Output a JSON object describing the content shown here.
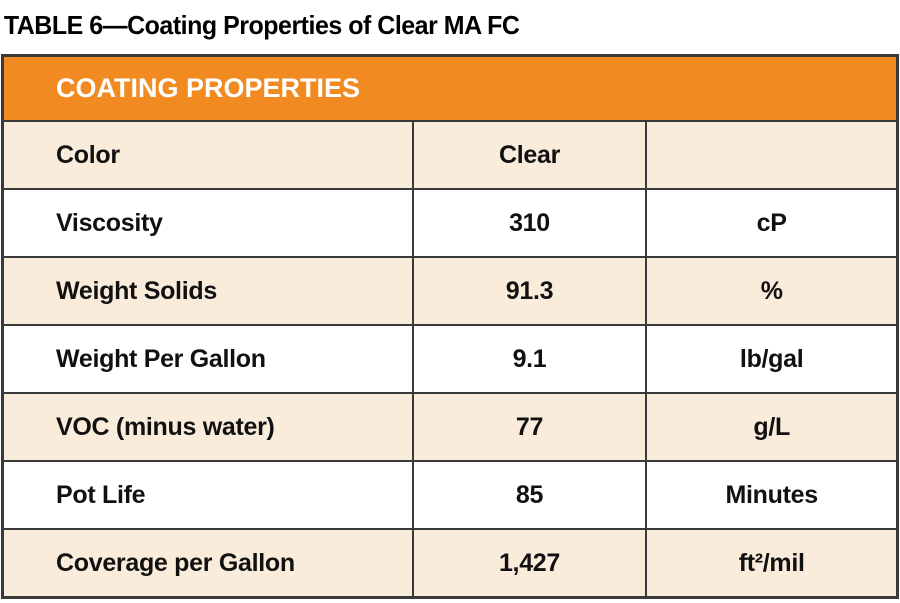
{
  "page": {
    "title": "TABLE 6—Coating Properties of Clear MA FC"
  },
  "colors": {
    "header_bg": "#f08a21",
    "header_text": "#ffffff",
    "row_alt_bg": "#faecdb",
    "border": "#3a3a3a"
  },
  "table": {
    "header": "COATING PROPERTIES",
    "rows": [
      {
        "property": "Color",
        "value": "Clear",
        "units": ""
      },
      {
        "property": "Viscosity",
        "value": "310",
        "units": "cP"
      },
      {
        "property": "Weight Solids",
        "value": "91.3",
        "units": "%"
      },
      {
        "property": "Weight Per Gallon",
        "value": "9.1",
        "units": "lb/gal"
      },
      {
        "property": "VOC (minus water)",
        "value": "77",
        "units": "g/L"
      },
      {
        "property": "Pot Life",
        "value": "85",
        "units": "Minutes"
      },
      {
        "property": "Coverage per Gallon",
        "value": "1,427",
        "units": "ft²/mil"
      }
    ]
  }
}
